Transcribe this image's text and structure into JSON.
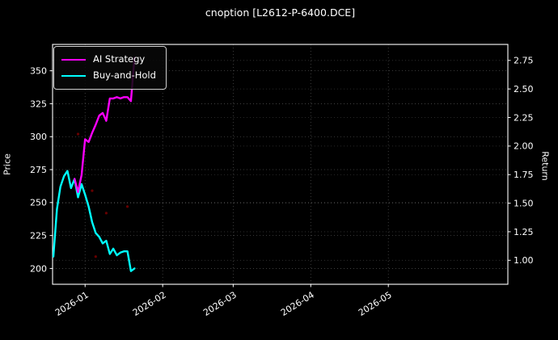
{
  "chart_data": {
    "type": "line",
    "title": "cnoption [L2612-P-6400.DCE]",
    "ylabel_left": "Price",
    "ylabel_right": "Return",
    "background": "#000000",
    "text_color": "#ffffff",
    "grid": true,
    "legend_position": "upper-left",
    "left_axis": {
      "ticks": [
        200,
        225,
        250,
        275,
        300,
        325,
        350
      ],
      "range": [
        188,
        370
      ]
    },
    "right_axis": {
      "tick_labels": [
        "1.00",
        "1.25",
        "1.50",
        "1.75",
        "2.00",
        "2.25",
        "2.50",
        "2.75"
      ],
      "ticks": [
        1.0,
        1.25,
        1.5,
        1.75,
        2.0,
        2.25,
        2.5,
        2.75
      ],
      "range": [
        0.79,
        2.89
      ]
    },
    "x_axis": {
      "ticks": [
        {
          "label": "2026-01",
          "date": "2026-01-01"
        },
        {
          "label": "2026-02",
          "date": "2026-02-02"
        },
        {
          "label": "2026-03",
          "date": "2026-03-02"
        },
        {
          "label": "2026-04",
          "date": "2026-04-01"
        },
        {
          "label": "2026-05",
          "date": "2026-05-01"
        }
      ],
      "range": [
        "2025-12-19",
        "2026-06-12"
      ]
    },
    "series": [
      {
        "name": "Buy-and-Hold",
        "color": "#00ffff",
        "axis": "left",
        "linewidth": 2.4,
        "points": [
          [
            "2025-12-19",
            209
          ],
          [
            "2025-12-22",
            245
          ],
          [
            "2025-12-23",
            262
          ],
          [
            "2025-12-24",
            270
          ],
          [
            "2025-12-25",
            274
          ],
          [
            "2025-12-26",
            261
          ],
          [
            "2025-12-29",
            268
          ],
          [
            "2025-12-30",
            254
          ],
          [
            "2025-12-31",
            264
          ],
          [
            "2026-01-01",
            256
          ],
          [
            "2026-01-02",
            247
          ],
          [
            "2026-01-05",
            235
          ],
          [
            "2026-01-06",
            227
          ],
          [
            "2026-01-07",
            224
          ],
          [
            "2026-01-08",
            219
          ],
          [
            "2026-01-09",
            221
          ],
          [
            "2026-01-12",
            211
          ],
          [
            "2026-01-13",
            215
          ],
          [
            "2026-01-14",
            210
          ],
          [
            "2026-01-15",
            212
          ],
          [
            "2026-01-16",
            213
          ],
          [
            "2026-01-19",
            213
          ],
          [
            "2026-01-20",
            198
          ],
          [
            "2026-01-21",
            200
          ]
        ]
      },
      {
        "name": "AI Strategy",
        "color": "#ff00ff",
        "axis": "left",
        "linewidth": 2.4,
        "points": [
          [
            "2025-12-29",
            268
          ],
          [
            "2025-12-30",
            258
          ],
          [
            "2025-12-31",
            271
          ],
          [
            "2026-01-01",
            298
          ],
          [
            "2026-01-02",
            296
          ],
          [
            "2026-01-05",
            303
          ],
          [
            "2026-01-06",
            309
          ],
          [
            "2026-01-07",
            316
          ],
          [
            "2026-01-08",
            318
          ],
          [
            "2026-01-09",
            312
          ],
          [
            "2026-01-12",
            329
          ],
          [
            "2026-01-13",
            329
          ],
          [
            "2026-01-14",
            330
          ],
          [
            "2026-01-15",
            329
          ],
          [
            "2026-01-16",
            330
          ],
          [
            "2026-01-19",
            330
          ],
          [
            "2026-01-20",
            327
          ],
          [
            "2026-01-21",
            360
          ]
        ]
      }
    ],
    "markers": {
      "name": "signal-dots",
      "color": "#bb0000",
      "opacity": 0.55,
      "radius": 1.6,
      "points": [
        {
          "date": "2025-12-30",
          "price": 302
        },
        {
          "date": "2026-01-05",
          "price": 259
        },
        {
          "date": "2026-01-06",
          "price": 209
        },
        {
          "date": "2026-01-09",
          "price": 242
        },
        {
          "date": "2026-01-19",
          "price": 247
        }
      ]
    },
    "legend": [
      {
        "label": "AI Strategy",
        "color": "#ff00ff"
      },
      {
        "label": "Buy-and-Hold",
        "color": "#00ffff"
      }
    ]
  }
}
